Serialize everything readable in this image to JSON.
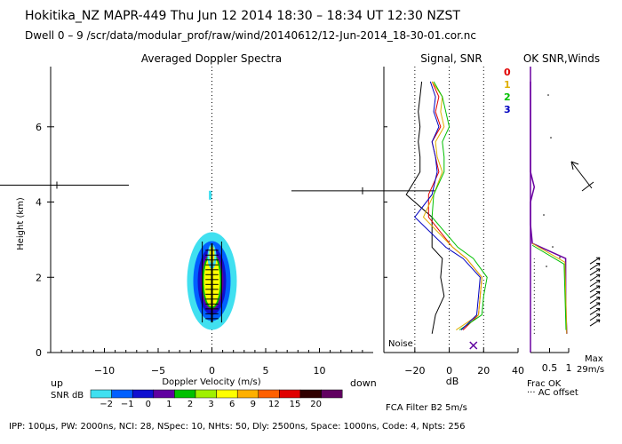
{
  "header": {
    "line1": "Hokitika_NZ   MAPR-449   Thu Jun 12 2014 18:30 – 18:34 UT 12:30 NZST",
    "line2": "Dwell   0 –   9    /scr/data/modular_prof/raw/wind/20140612/12-Jun-2014_18-30-01.cor.nc"
  },
  "panels": {
    "spectra_title": "Averaged Doppler Spectra",
    "signal_title": "Signal, SNR",
    "ok_title": "OK SNR,Winds"
  },
  "footer": {
    "fca": "FCA Filter B2   5m/s",
    "params": "IPP: 100μs,   PW: 2000ns,   NCI:  28,   NSpec: 10,  NHts: 50,   Dly: 2500ns,   Space: 1000ns,   Code: 4,   Npts: 256"
  },
  "labels": {
    "up": "up",
    "down": "down",
    "noise": "Noise",
    "frac_ok": "Frac OK",
    "ac_offset": "··· AC offset",
    "max": "Max",
    "max_val": "29m/s"
  },
  "colors": {
    "noise": "#000000",
    "snr0": "#e00000",
    "snr1": "#e0b000",
    "snr2": "#00c000",
    "snr3": "#0000c0",
    "frac": "#6a00a0"
  },
  "snr_legend": {
    "label": "SNR dB",
    "ticks": [
      "−2",
      "−1",
      "0",
      "1",
      "2",
      "3",
      "6",
      "9",
      "12",
      "15",
      "20"
    ],
    "colors": [
      "#40e0f0",
      "#0060ff",
      "#1010d0",
      "#6000a0",
      "#00c000",
      "#a0f000",
      "#ffff00",
      "#ffb000",
      "#ff6000",
      "#e00000",
      "#300000",
      "#600060"
    ]
  },
  "chart_data": [
    {
      "type": "heatmap",
      "title": "Averaged Doppler Spectra",
      "xlabel": "Doppler Velocity (m/s)",
      "ylabel": "Height (km)",
      "xlim": [
        -15,
        15
      ],
      "ylim": [
        0,
        7.6
      ],
      "xticks": [
        "−10",
        "−5",
        "0",
        "5",
        "10"
      ],
      "yticks": [
        "0",
        "2",
        "4",
        "6"
      ]
    },
    {
      "type": "line",
      "title": "Signal, SNR",
      "xlabel": "dB",
      "xlim": [
        -38,
        40
      ],
      "xticks": [
        "−20",
        "0",
        "20",
        "40"
      ],
      "series": [
        {
          "name": "Noise",
          "h": [
            0.5,
            1,
            1.5,
            2,
            2.5,
            2.8,
            3.6,
            4.2,
            4.8,
            5.2,
            5.6,
            6,
            6.4,
            6.8,
            7.2
          ],
          "x": [
            -10,
            -8,
            -3,
            -5,
            -4,
            -10,
            -10,
            -25,
            -17,
            -17,
            -18,
            -17,
            -18,
            -17,
            -16
          ]
        },
        {
          "name": "0",
          "h": [
            0.6,
            1,
            1.5,
            2,
            2.5,
            2.8,
            3.6,
            4.2,
            4.8,
            5.2,
            5.6,
            6,
            6.4,
            6.8,
            7.2
          ],
          "x": [
            8,
            17,
            18,
            19,
            10,
            2,
            -12,
            -12,
            -6,
            -8,
            -10,
            -5,
            -8,
            -6,
            -10
          ]
        },
        {
          "name": "1",
          "h": [
            0.6,
            1,
            1.5,
            2,
            2.5,
            2.8,
            3.6,
            4.2,
            4.8,
            5.2,
            5.6,
            6,
            6.4,
            6.8,
            7.2
          ],
          "x": [
            4,
            17,
            18,
            19,
            10,
            2,
            -15,
            -9,
            -4,
            -7,
            -8,
            -3,
            -5,
            -4,
            -10
          ]
        },
        {
          "name": "2",
          "h": [
            0.6,
            1,
            1.5,
            2,
            2.5,
            2.8,
            3.6,
            4.2,
            4.8,
            5.2,
            5.6,
            6,
            6.4,
            6.8,
            7.2
          ],
          "x": [
            6,
            19,
            20,
            22,
            14,
            5,
            -10,
            -9,
            -3,
            -3,
            -4,
            0,
            -2,
            -4,
            -9
          ]
        },
        {
          "name": "3",
          "h": [
            0.6,
            1,
            1.5,
            2,
            2.5,
            2.8,
            3.6,
            4.2,
            4.8,
            5.2,
            5.6,
            6,
            6.4,
            6.8,
            7.2
          ],
          "x": [
            7,
            16,
            17,
            18,
            8,
            -2,
            -20,
            -10,
            -7,
            -8,
            -10,
            -6,
            -9,
            -8,
            -11
          ]
        }
      ]
    },
    {
      "type": "line",
      "title": "OK SNR,Winds",
      "xlabel": "Frac OK",
      "xlim": [
        0,
        1
      ],
      "xticks": [
        "0.5",
        "1"
      ],
      "series": [
        {
          "name": "Frac OK",
          "h": [
            0.5,
            1,
            1.5,
            2,
            2.5,
            2.9,
            3.4,
            4,
            4.4,
            4.8,
            5.5,
            6,
            6.6,
            7.2
          ],
          "x": [
            0.95,
            0.93,
            0.92,
            0.92,
            0.92,
            0.05,
            0,
            0,
            0.1,
            0,
            0,
            0,
            0,
            0
          ]
        }
      ]
    }
  ]
}
